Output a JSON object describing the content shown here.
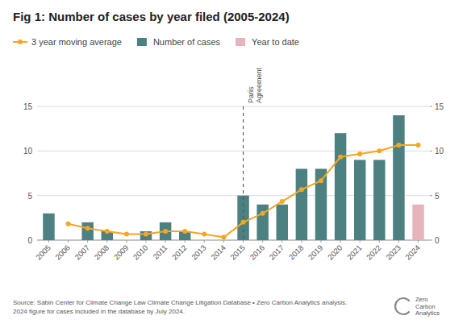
{
  "chart_data": {
    "type": "bar",
    "title": "Fig 1: Number of cases by year filed (2005-2024)",
    "x": [
      2005,
      2006,
      2007,
      2008,
      2009,
      2010,
      2011,
      2012,
      2013,
      2014,
      2015,
      2016,
      2017,
      2018,
      2019,
      2020,
      2021,
      2022,
      2023,
      2024
    ],
    "xlim": [
      2004.4,
      2024.6
    ],
    "xticks": [
      2005,
      2006,
      2007,
      2008,
      2009,
      2010,
      2011,
      2012,
      2013,
      2014,
      2015,
      2016,
      2017,
      2018,
      2019,
      2020,
      2021,
      2022,
      2023,
      2024
    ],
    "ylim": [
      0,
      15
    ],
    "yticks": [
      0,
      5,
      10,
      15
    ],
    "y2lim": [
      0,
      15
    ],
    "y2ticks": [
      0,
      5,
      10,
      15
    ],
    "grid": true,
    "legend": "top",
    "series": [
      {
        "name": "3 year moving average",
        "type": "line",
        "marker": "circle",
        "color": "#f5a623",
        "x": [
          2006,
          2007,
          2008,
          2009,
          2010,
          2011,
          2012,
          2013,
          2014,
          2015,
          2016,
          2017,
          2018,
          2019,
          2020,
          2021,
          2022,
          2023,
          2024
        ],
        "values": [
          1.83,
          1.33,
          1.0,
          0.67,
          0.67,
          1.0,
          1.0,
          0.67,
          0.33,
          2.0,
          3.0,
          4.33,
          5.67,
          6.67,
          9.33,
          9.67,
          10.0,
          10.67,
          10.67
        ]
      },
      {
        "name": "Number of cases",
        "type": "bar",
        "color": "#4d8080",
        "values": [
          3,
          0,
          2,
          1,
          0,
          1,
          2,
          1,
          0,
          0,
          5,
          4,
          4,
          8,
          8,
          12,
          9,
          9,
          14,
          null
        ]
      },
      {
        "name": "Year to date",
        "type": "bar",
        "color": "#e8b4bc",
        "values": [
          null,
          null,
          null,
          null,
          null,
          null,
          null,
          null,
          null,
          null,
          null,
          null,
          null,
          null,
          null,
          null,
          null,
          null,
          null,
          4
        ]
      }
    ],
    "annotations": [
      {
        "text": "Paris\nAgreement",
        "x": 2015,
        "line_style": "dashed"
      }
    ],
    "footnote": "Source: Sabin Center for Climate Change Law Climate Change Litigation Database • Zero Carbon Analytics analysis.\n2024 figure for cases included in the database by July 2024.",
    "logo_text": [
      "Zero",
      "Carbon",
      "Analytics"
    ]
  }
}
